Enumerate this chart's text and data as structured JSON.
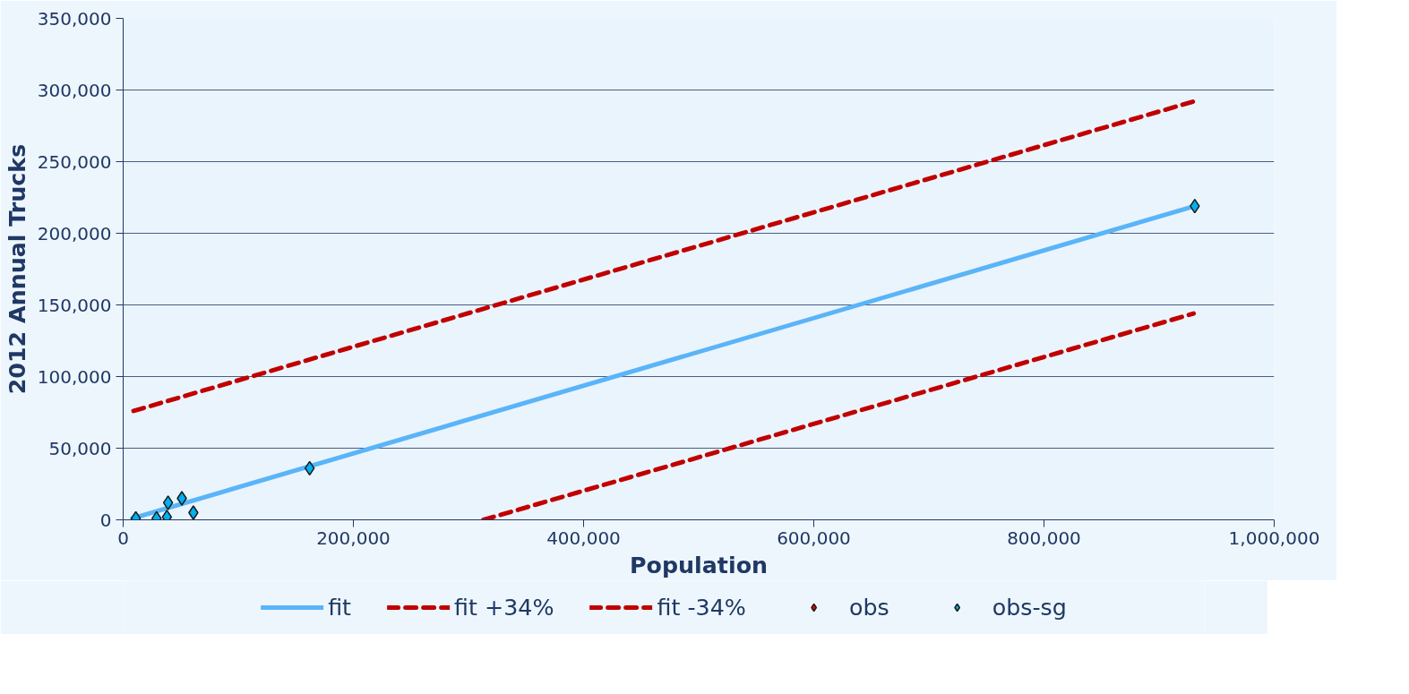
{
  "chart_data": {
    "type": "scatter",
    "xlabel": "Population",
    "ylabel": "2012 Annual Trucks",
    "xlim": [
      0,
      1000000
    ],
    "xticks": [
      {
        "value": 0,
        "label": "0"
      },
      {
        "value": 200000,
        "label": "200,000"
      },
      {
        "value": 400000,
        "label": "400,000"
      },
      {
        "value": 600000,
        "label": "600,000"
      },
      {
        "value": 800000,
        "label": "800,000"
      },
      {
        "value": 1000000,
        "label": "1,000,000"
      }
    ],
    "ylim": [
      0,
      350000
    ],
    "yticks": [
      {
        "value": 0,
        "label": "0"
      },
      {
        "value": 50000,
        "label": "50,000"
      },
      {
        "value": 100000,
        "label": "100,000"
      },
      {
        "value": 150000,
        "label": "150,000"
      },
      {
        "value": 200000,
        "label": "200,000"
      },
      {
        "value": 250000,
        "label": "250,000"
      },
      {
        "value": 300000,
        "label": "300,000"
      },
      {
        "value": 350000,
        "label": "350,000"
      }
    ],
    "grid": "y",
    "legend": "bottom",
    "marker": "diamond",
    "series": [
      {
        "name": "fit",
        "type": "line",
        "marker": "none",
        "color": "#5ab4f8",
        "line_style": "solid",
        "x": [
          8000,
          931000
        ],
        "values": [
          1000,
          219000
        ]
      },
      {
        "name": "fit +34%",
        "type": "line",
        "marker": "none",
        "color": "#c00000",
        "line_style": "dashed",
        "x": [
          9000,
          930000
        ],
        "values": [
          76000,
          292000
        ]
      },
      {
        "name": "fit -34%",
        "type": "line",
        "marker": "none",
        "color": "#c00000",
        "line_style": "dashed",
        "x": [
          313000,
          930000
        ],
        "values": [
          0,
          144000
        ]
      },
      {
        "name": "obs",
        "color": "#ff0000"
      },
      {
        "name": "obs-sg",
        "color": "#00b0f0",
        "x": [
          11000,
          29000,
          38000,
          39000,
          51000,
          61000,
          162000,
          931000
        ],
        "values": [
          1000,
          1000,
          2000,
          12000,
          15000,
          5000,
          36000,
          219000
        ]
      }
    ]
  }
}
